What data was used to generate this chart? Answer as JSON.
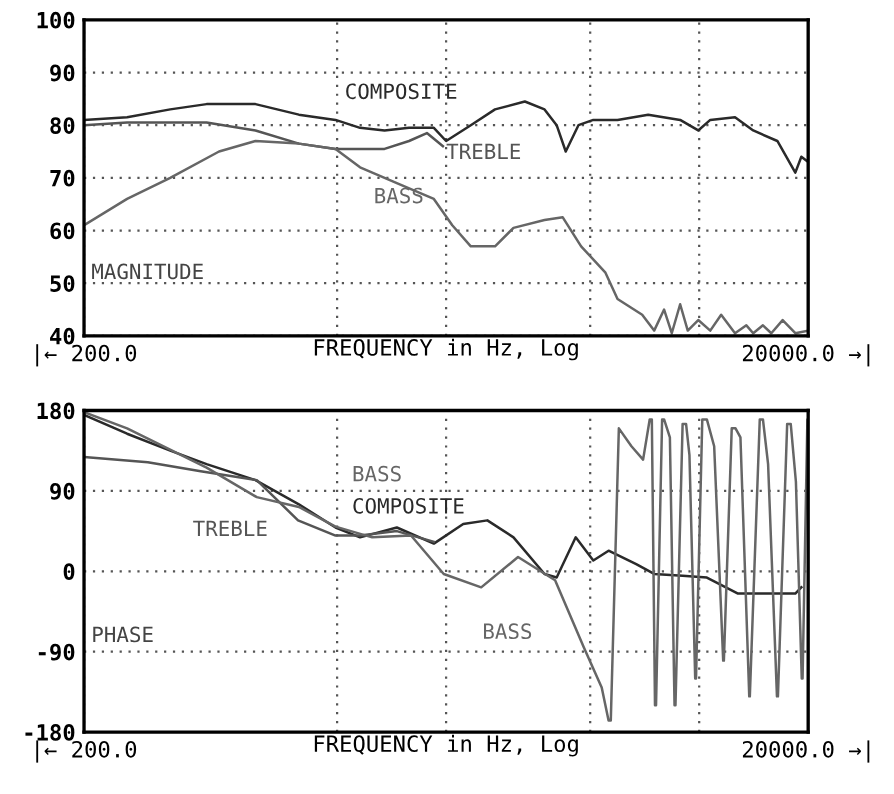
{
  "chart_data": [
    {
      "type": "line",
      "xlabel": "FREQUENCY in Hz, Log",
      "log": "x",
      "xlim": [
        200,
        20000
      ],
      "ylim": [
        40,
        100
      ],
      "xticks": [
        {
          "value": 200,
          "label": "|← 200.0"
        },
        {
          "value": 1000,
          "label": null
        },
        {
          "value": 2000,
          "label": null
        },
        {
          "value": 5000,
          "label": null
        },
        {
          "value": 10000,
          "label": null
        },
        {
          "value": 20000,
          "label": "20000.0 →|"
        }
      ],
      "yticks": [
        40,
        50,
        60,
        70,
        80,
        90,
        100
      ],
      "grid": true,
      "line_style": "solid",
      "annotations": [
        "MAGNITUDE"
      ],
      "series": [
        {
          "name": "COMPOSITE",
          "color": "#2a2a2a",
          "x": [
            200,
            263,
            346,
            436,
            595,
            784,
            990,
            1157,
            1352,
            1580,
            1850,
            2000,
            2340,
            2730,
            3300,
            3740,
            4040,
            4280,
            4640,
            5100,
            5950,
            7230,
            8860,
            9940,
            10730,
            12560,
            14100,
            16440,
            18430,
            19150,
            20000
          ],
          "values": [
            81,
            81.5,
            83,
            84,
            84,
            82,
            81,
            79.5,
            79,
            79.5,
            79.5,
            77,
            80,
            83,
            84.5,
            83,
            80,
            75,
            80,
            81,
            81,
            82,
            81,
            79,
            81,
            81.5,
            79,
            77,
            71,
            74,
            73
          ]
        },
        {
          "name": "TREBLE",
          "color": "#555555",
          "x": [
            200,
            263,
            436,
            595,
            784,
            990,
            1352,
            1580,
            1770,
            1960
          ],
          "values": [
            80,
            80.5,
            80.5,
            79,
            76.5,
            75.5,
            75.5,
            77,
            78.5,
            76
          ]
        },
        {
          "name": "BASS",
          "color": "#666666",
          "x": [
            200,
            263,
            346,
            472,
            595,
            784,
            990,
            1157,
            1462,
            1850,
            2080,
            2340,
            2730,
            3070,
            3740,
            4200,
            4720,
            5510,
            5950,
            6960,
            7510,
            8000,
            8400,
            8860,
            9300,
            9940,
            10730,
            11500,
            12560,
            13500,
            14100,
            15000,
            15820,
            17000,
            18430,
            20000
          ],
          "values": [
            61,
            66,
            70,
            75,
            77,
            76.5,
            75.5,
            72,
            69,
            66,
            61,
            57,
            57,
            60.5,
            62,
            62.5,
            57,
            52,
            47,
            44,
            41,
            45,
            40.5,
            46,
            41,
            43,
            41,
            44,
            40.5,
            42,
            40.5,
            42,
            40.5,
            43,
            40.5,
            41
          ]
        }
      ]
    },
    {
      "type": "line",
      "xlabel": "FREQUENCY in Hz, Log",
      "log": "x",
      "xlim": [
        200,
        20000
      ],
      "ylim": [
        -180,
        180
      ],
      "xticks": [
        {
          "value": 200,
          "label": "|← 200.0"
        },
        {
          "value": 1000,
          "label": null
        },
        {
          "value": 2000,
          "label": null
        },
        {
          "value": 5000,
          "label": null
        },
        {
          "value": 10000,
          "label": null
        },
        {
          "value": 20000,
          "label": "20000.0 →|"
        }
      ],
      "yticks": [
        -180,
        -90,
        0,
        90,
        180
      ],
      "grid": true,
      "line_style": "solid",
      "annotations": [
        "PHASE"
      ],
      "series": [
        {
          "name": "COMPOSITE",
          "color": "#2a2a2a",
          "x": [
            200,
            263,
            346,
            436,
            595,
            784,
            990,
            1157,
            1462,
            1850,
            2230,
            2600,
            3070,
            3740,
            4040,
            4560,
            5100,
            5620,
            6700,
            7510,
            9000,
            10500,
            12800,
            18430,
            19150
          ],
          "values": [
            175,
            154,
            135,
            120,
            102,
            75,
            49,
            38,
            49,
            31,
            53,
            57,
            38,
            -3,
            -7,
            38,
            12,
            23,
            8,
            -3,
            -5,
            -7,
            -25,
            -25,
            -18
          ]
        },
        {
          "name": "TREBLE",
          "color": "#555555",
          "x": [
            200,
            300,
            420,
            600,
            780,
            990,
            1157,
            1462,
            1850
          ],
          "values": [
            128,
            122,
            112,
            102,
            57,
            40,
            40,
            45,
            33
          ]
        },
        {
          "name": "BASS",
          "color": "#666666",
          "x": [
            200,
            263,
            436,
            600,
            784,
            990,
            1250,
            1600,
            1970,
            2500,
            3160,
            4000,
            4800,
            5380,
            5620,
            5700,
            6000,
            6500,
            7000,
            7300,
            7400,
            7550,
            7600,
            7900,
            8000,
            8300,
            8550,
            8600,
            9000,
            9200,
            9400,
            9750,
            9800,
            10200,
            10500,
            11000,
            11650,
            11700,
            12300,
            12600,
            13000,
            13750,
            13800,
            14700,
            15000,
            15500,
            16400,
            16500,
            17500,
            17900,
            18500,
            19200,
            19300,
            19900,
            20000
          ],
          "values": [
            178,
            160,
            116,
            83,
            72,
            50,
            38,
            40,
            -3,
            -18,
            16,
            -10,
            -85,
            -130,
            -167,
            -167,
            160,
            140,
            125,
            170,
            170,
            -150,
            -150,
            170,
            170,
            150,
            -150,
            -150,
            165,
            165,
            130,
            -120,
            -120,
            170,
            170,
            140,
            -100,
            -100,
            160,
            160,
            150,
            -140,
            -140,
            170,
            170,
            120,
            -140,
            -140,
            165,
            165,
            100,
            -120,
            -120,
            170,
            170
          ]
        }
      ]
    }
  ]
}
